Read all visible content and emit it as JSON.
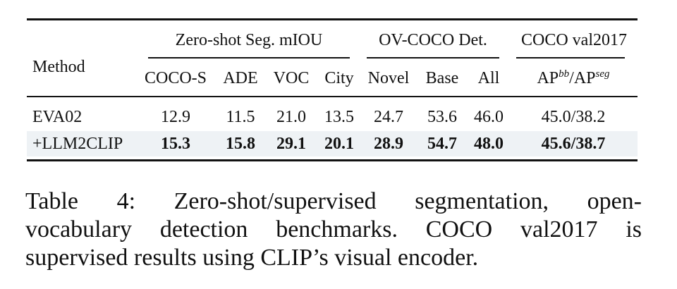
{
  "table": {
    "groups": {
      "seg": "Zero-shot Seg. mIOU",
      "det": "OV-COCO Det.",
      "coco": "COCO val2017"
    },
    "method_header": "Method",
    "subheaders": {
      "coco_s": "COCO-S",
      "ade": "ADE",
      "voc": "VOC",
      "city": "City",
      "novel": "Novel",
      "base": "Base",
      "all": "All",
      "ap_prefix1": "AP",
      "ap_sup1": "bb",
      "ap_mid": "/AP",
      "ap_sup2": "seg"
    },
    "rows": [
      {
        "method": "EVA02",
        "coco_s": "12.9",
        "ade": "11.5",
        "voc": "21.0",
        "city": "13.5",
        "novel": "24.7",
        "base": "53.6",
        "all": "46.0",
        "ap": "45.0/38.2"
      },
      {
        "method": "+LLM2CLIP",
        "coco_s": "15.3",
        "ade": "15.8",
        "voc": "29.1",
        "city": "20.1",
        "novel": "28.9",
        "base": "54.7",
        "all": "48.0",
        "ap": "45.6/38.7"
      }
    ]
  },
  "caption": {
    "line1": "Table 4: Zero-shot/supervised segmentation, open-",
    "line2": "vocabulary detection benchmarks. COCO val2017 is",
    "line3": "supervised results using CLIP’s visual encoder."
  }
}
